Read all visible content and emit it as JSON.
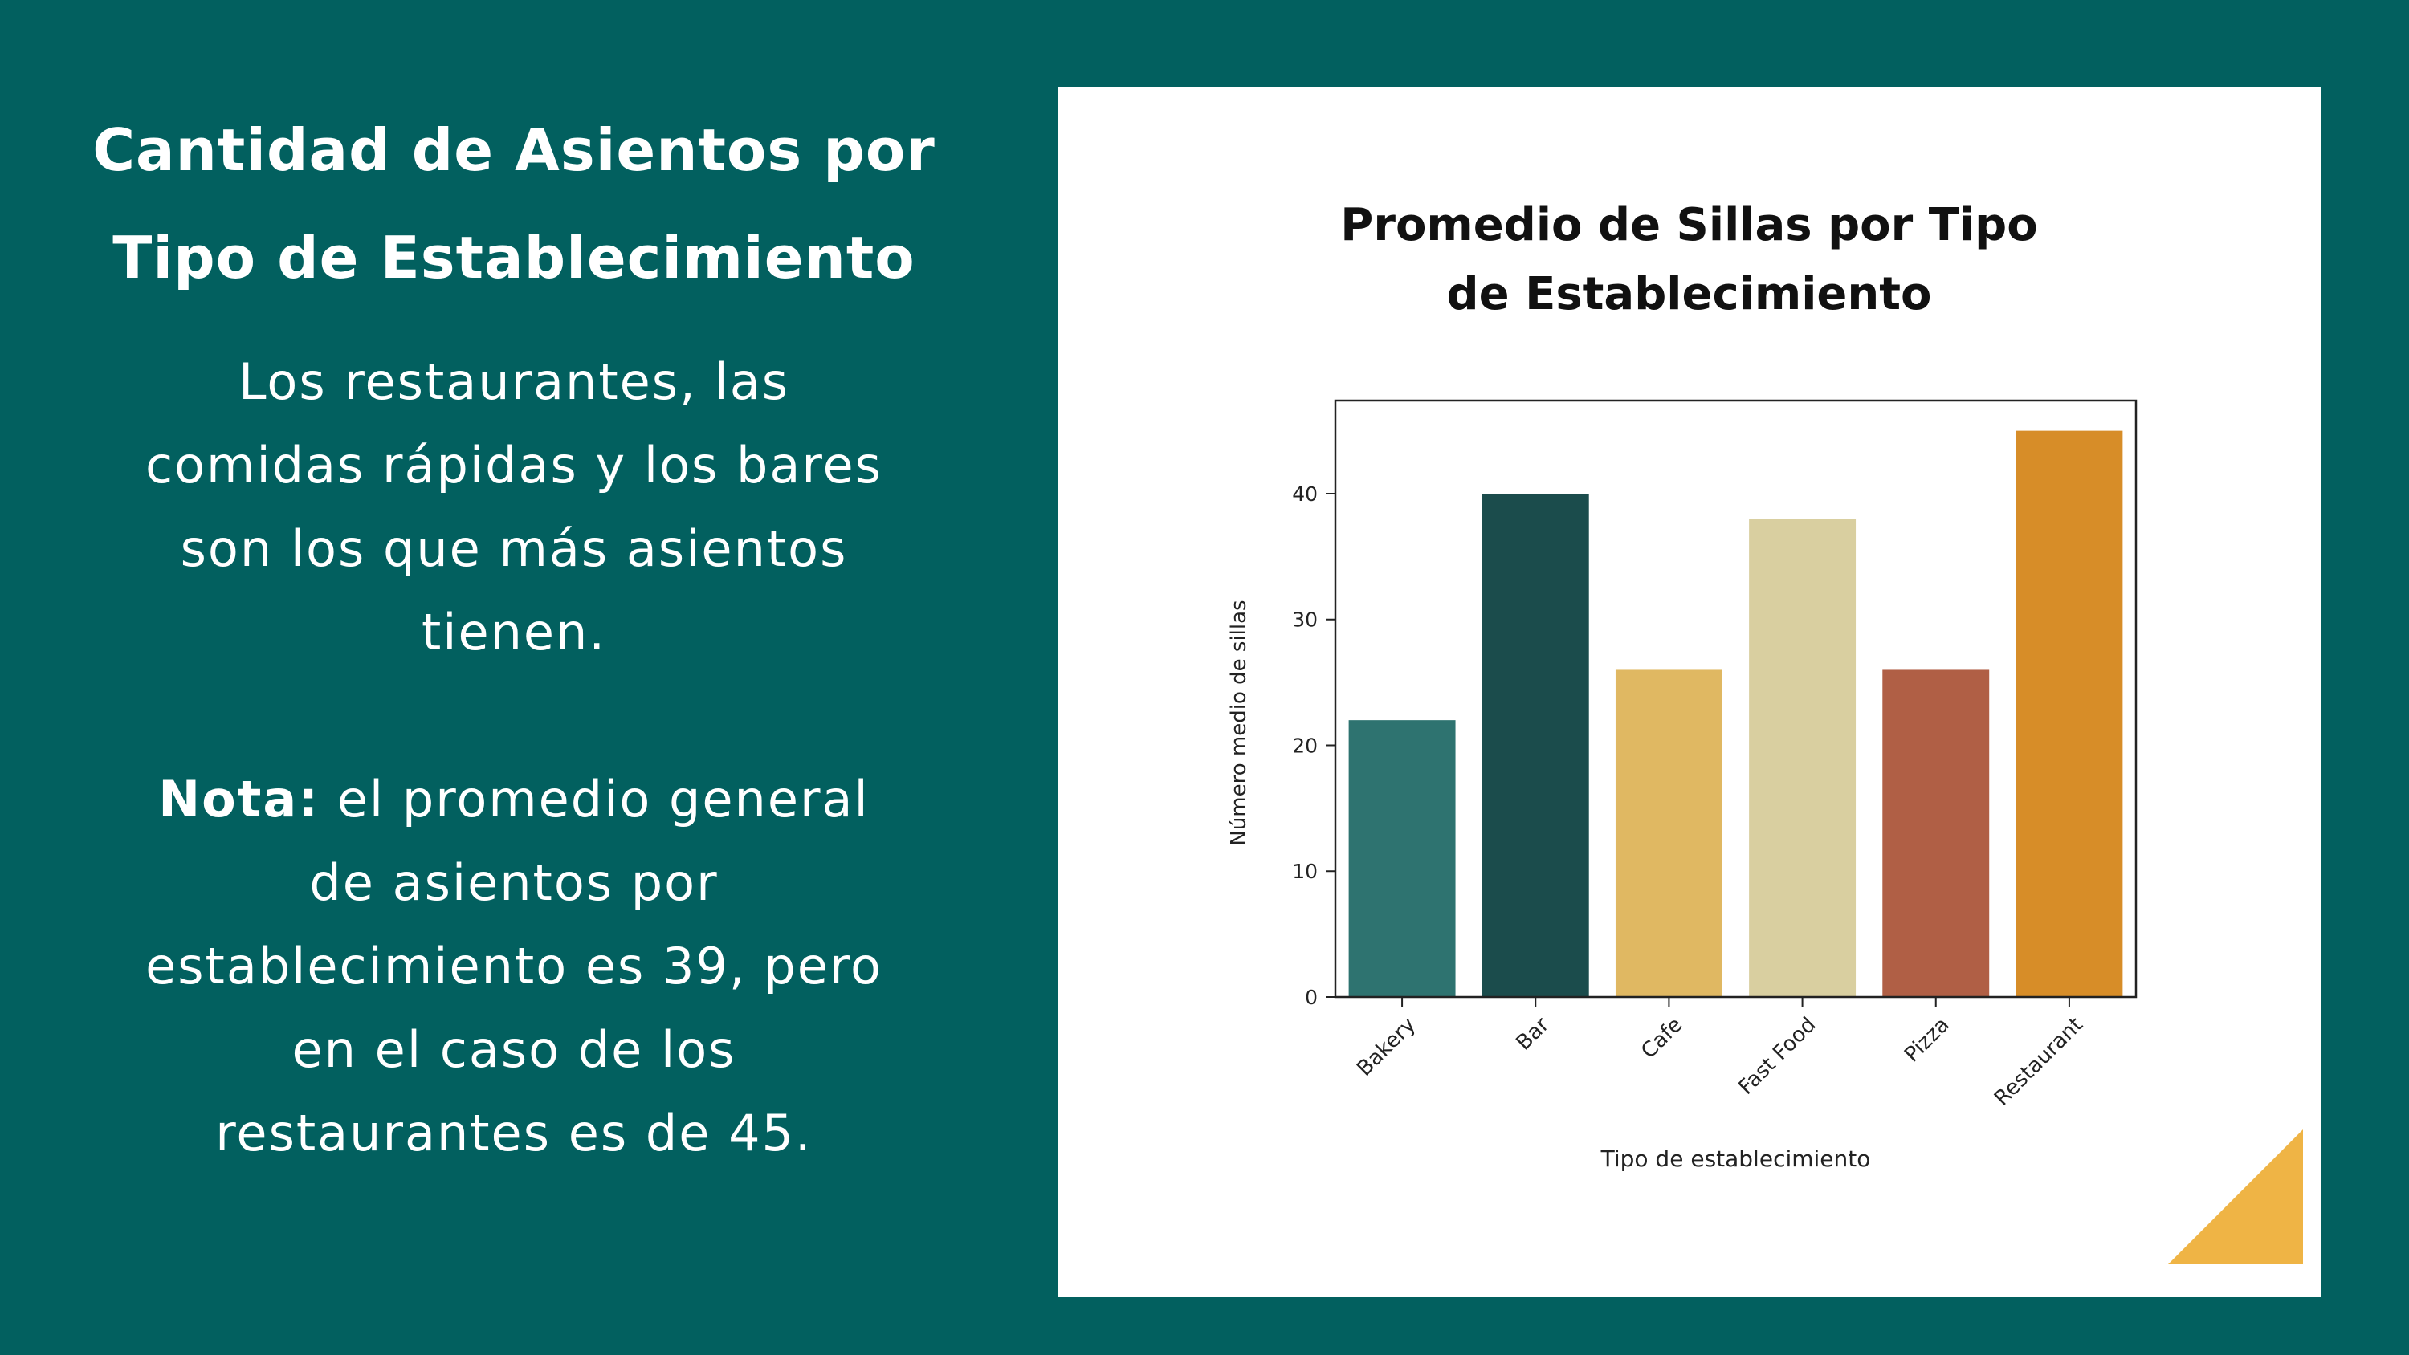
{
  "left": {
    "heading_line1": "Cantidad de Asientos por",
    "heading_line2": "Tipo de Establecimiento",
    "body_lines": [
      "Los restaurantes, las",
      "comidas rápidas y los bares",
      "son los que más asientos",
      "tienen."
    ],
    "note_label": "Nota:",
    "note_first_line": " el promedio general",
    "note_lines": [
      "de asientos por",
      "establecimiento es 39, pero",
      "en el caso de los",
      "restaurantes es de 45."
    ]
  },
  "chart_data": {
    "type": "bar",
    "title_line1": "Promedio de Sillas por Tipo",
    "title_line2": "de Establecimiento",
    "xlabel": "Tipo de establecimiento",
    "ylabel": "Número medio de sillas",
    "categories": [
      "Bakery",
      "Bar",
      "Cafe",
      "Fast Food",
      "Pizza",
      "Restaurant"
    ],
    "values": [
      22,
      40,
      26,
      38,
      26,
      45
    ],
    "colors": [
      "#2e7370",
      "#1b4c4c",
      "#e0b862",
      "#d9cfa0",
      "#b05f45",
      "#d78d28"
    ],
    "ylim": [
      0,
      47.4
    ],
    "yticks": [
      0,
      10,
      20,
      30,
      40
    ],
    "grid": false
  },
  "colors": {
    "background": "#02605f",
    "card": "#ffffff",
    "corner_accent": "#efb445"
  }
}
